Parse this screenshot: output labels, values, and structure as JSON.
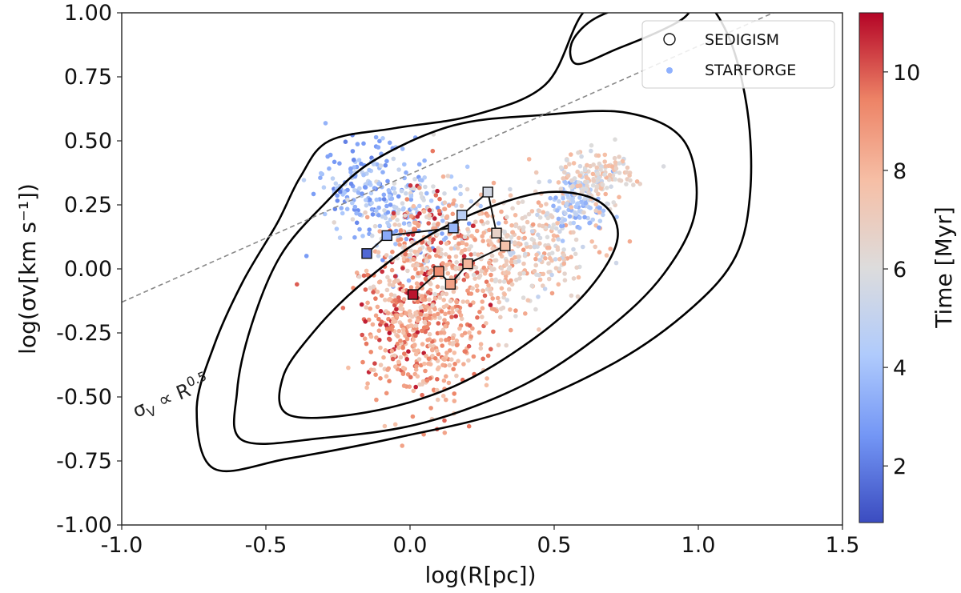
{
  "chart_data": {
    "type": "scatter",
    "xlabel": "log(R[pc])",
    "ylabel": "log(σv[km s⁻¹])",
    "xlim": [
      -1.0,
      1.5
    ],
    "ylim": [
      -1.0,
      1.0
    ],
    "x_ticks": [
      -1.0,
      -0.5,
      0.0,
      0.5,
      1.0,
      1.5
    ],
    "x_tick_labels": [
      "-1.0",
      "-0.5",
      "0.0",
      "0.5",
      "1.0",
      "1.5"
    ],
    "y_ticks": [
      -1.0,
      -0.75,
      -0.5,
      -0.25,
      0.0,
      0.25,
      0.5,
      0.75,
      1.0
    ],
    "y_tick_labels": [
      "-1.00",
      "-0.75",
      "-0.50",
      "-0.25",
      "0.00",
      "0.25",
      "0.50",
      "0.75",
      "1.00"
    ],
    "colorbar": {
      "label": "Time [Myr]",
      "range": [
        0.85,
        11.2
      ],
      "ticks": [
        2,
        4,
        6,
        8,
        10
      ],
      "tick_labels": [
        "2",
        "4",
        "6",
        "8",
        "10"
      ],
      "colormap": "coolwarm",
      "colors": [
        "#3b4cc0",
        "#7396f5",
        "#b0cbfc",
        "#dddcdc",
        "#f6bfa6",
        "#ed8366",
        "#b40426"
      ]
    },
    "legend": {
      "location": "top-right",
      "entries": [
        {
          "label": "SEDIGISM",
          "marker": "open-circle"
        },
        {
          "label": "STARFORGE",
          "marker": "filled-dot",
          "color": "#8fb1fe"
        }
      ]
    },
    "reference_line": {
      "label_prefix": "σ",
      "label_sub": "V",
      "label_mid": " ∝ R",
      "label_sup": "0.5",
      "slope": 0.5,
      "intercept": 0.37,
      "style": "dashed",
      "color": "#888888"
    },
    "sedigism_contours": [
      [
        [
          -0.68,
          -0.78
        ],
        [
          -0.42,
          -0.74
        ],
        [
          -0.05,
          -0.66
        ],
        [
          0.35,
          -0.55
        ],
        [
          0.72,
          -0.36
        ],
        [
          0.98,
          -0.15
        ],
        [
          1.13,
          0.05
        ],
        [
          1.18,
          0.3
        ],
        [
          1.17,
          0.62
        ],
        [
          1.1,
          0.92
        ],
        [
          0.98,
          1.08
        ],
        [
          0.75,
          1.12
        ],
        [
          0.6,
          1.0
        ],
        [
          0.47,
          0.72
        ],
        [
          0.22,
          0.6
        ],
        [
          -0.05,
          0.55
        ],
        [
          -0.28,
          0.5
        ],
        [
          -0.38,
          0.36
        ],
        [
          -0.46,
          0.18
        ],
        [
          -0.58,
          -0.05
        ],
        [
          -0.68,
          -0.3
        ],
        [
          -0.74,
          -0.55
        ]
      ],
      [
        [
          -0.58,
          -0.67
        ],
        [
          -0.3,
          -0.66
        ],
        [
          0.05,
          -0.6
        ],
        [
          0.4,
          -0.45
        ],
        [
          0.68,
          -0.24
        ],
        [
          0.88,
          -0.02
        ],
        [
          0.99,
          0.23
        ],
        [
          0.95,
          0.5
        ],
        [
          0.75,
          0.61
        ],
        [
          0.45,
          0.6
        ],
        [
          0.15,
          0.56
        ],
        [
          -0.13,
          0.42
        ],
        [
          -0.3,
          0.25
        ],
        [
          -0.45,
          0.05
        ],
        [
          -0.55,
          -0.22
        ],
        [
          -0.6,
          -0.48
        ]
      ],
      [
        [
          -0.42,
          -0.57
        ],
        [
          -0.15,
          -0.56
        ],
        [
          0.15,
          -0.46
        ],
        [
          0.42,
          -0.28
        ],
        [
          0.62,
          -0.08
        ],
        [
          0.72,
          0.12
        ],
        [
          0.66,
          0.26
        ],
        [
          0.48,
          0.3
        ],
        [
          0.25,
          0.23
        ],
        [
          0.02,
          0.1
        ],
        [
          -0.18,
          -0.07
        ],
        [
          -0.33,
          -0.24
        ],
        [
          -0.44,
          -0.42
        ]
      ],
      [
        [
          0.58,
          0.8
        ],
        [
          0.72,
          0.86
        ],
        [
          0.85,
          0.92
        ],
        [
          0.95,
          0.98
        ],
        [
          0.97,
          1.03
        ],
        [
          0.9,
          1.06
        ],
        [
          0.76,
          1.03
        ],
        [
          0.63,
          0.97
        ],
        [
          0.56,
          0.88
        ]
      ]
    ],
    "track_1": {
      "points": [
        [
          -0.15,
          0.06
        ],
        [
          -0.08,
          0.13
        ],
        [
          0.15,
          0.16
        ],
        [
          0.18,
          0.21
        ],
        [
          0.27,
          0.3
        ],
        [
          0.3,
          0.14
        ],
        [
          0.33,
          0.09
        ]
      ],
      "times": [
        1.5,
        3.2,
        3.6,
        4.6,
        5.6,
        6.7,
        7.6
      ]
    },
    "track_2": {
      "points": [
        [
          0.33,
          0.09
        ],
        [
          0.2,
          0.02
        ],
        [
          0.14,
          -0.06
        ],
        [
          0.1,
          -0.01
        ],
        [
          0.01,
          -0.1
        ]
      ],
      "times": [
        7.6,
        8.0,
        8.6,
        9.2,
        11.0
      ]
    },
    "starforge_clusters": [
      {
        "cx": -0.17,
        "cy": 0.34,
        "sx": 0.08,
        "sy": 0.09,
        "n": 130,
        "tmin": 2,
        "tmax": 5
      },
      {
        "cx": -0.02,
        "cy": 0.22,
        "sx": 0.1,
        "sy": 0.11,
        "n": 170,
        "tmin": 2.5,
        "tmax": 6.5
      },
      {
        "cx": 0.05,
        "cy": 0.05,
        "sx": 0.11,
        "sy": 0.13,
        "n": 300,
        "tmin": 6,
        "tmax": 11
      },
      {
        "cx": -0.04,
        "cy": -0.22,
        "sx": 0.07,
        "sy": 0.12,
        "n": 190,
        "tmin": 7,
        "tmax": 11
      },
      {
        "cx": 0.1,
        "cy": -0.28,
        "sx": 0.1,
        "sy": 0.14,
        "n": 240,
        "tmin": 7,
        "tmax": 10
      },
      {
        "cx": 0.28,
        "cy": 0.02,
        "sx": 0.1,
        "sy": 0.12,
        "n": 220,
        "tmin": 6,
        "tmax": 9
      },
      {
        "cx": 0.48,
        "cy": 0.1,
        "sx": 0.09,
        "sy": 0.11,
        "n": 180,
        "tmin": 5,
        "tmax": 8.5
      },
      {
        "cx": 0.58,
        "cy": 0.26,
        "sx": 0.05,
        "sy": 0.07,
        "n": 120,
        "tmin": 3,
        "tmax": 5.5
      },
      {
        "cx": 0.65,
        "cy": 0.36,
        "sx": 0.06,
        "sy": 0.05,
        "n": 140,
        "tmin": 5.5,
        "tmax": 8
      }
    ]
  }
}
